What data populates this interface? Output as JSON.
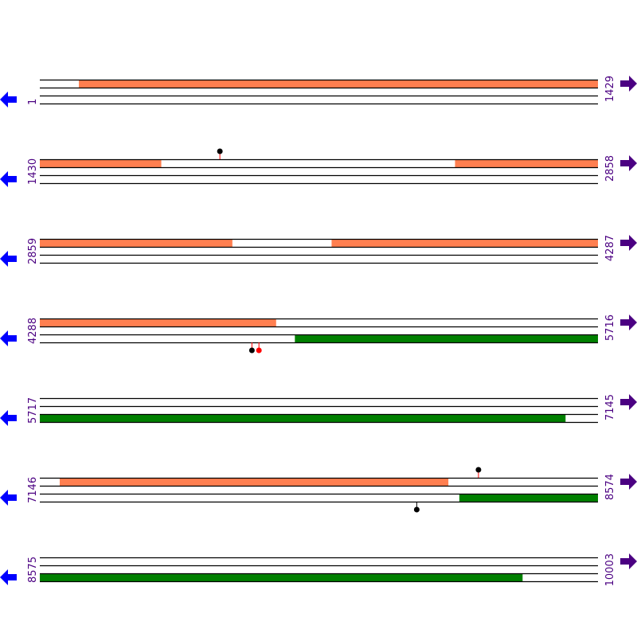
{
  "colors": {
    "forward": "#ff7f50",
    "reverse": "#008000",
    "line": "#000000",
    "label": "#4b0082",
    "left_arrow": "#0000ff",
    "right_arrow": "#4b0082",
    "marker_stem": "#ff0000",
    "marker_dot": "#000000"
  },
  "rows": [
    {
      "start": "1",
      "end": "1429",
      "s": 1,
      "e": 1429,
      "top": [
        [
          101,
          1429
        ]
      ],
      "bottom": [],
      "markers": []
    },
    {
      "start": "1430",
      "end": "2858",
      "s": 1430,
      "e": 2858,
      "top": [
        [
          1430,
          1740
        ],
        [
          2493,
          2858
        ]
      ],
      "bottom": [],
      "markers": [
        {
          "pos": 1891,
          "side": "above",
          "dot": "#000000",
          "stem": "#ff0000"
        }
      ]
    },
    {
      "start": "2859",
      "end": "4287",
      "s": 2859,
      "e": 4287,
      "top": [
        [
          2859,
          3351
        ],
        [
          3606,
          4287
        ]
      ],
      "bottom": [],
      "markers": []
    },
    {
      "start": "4288",
      "end": "5716",
      "s": 4288,
      "e": 5716,
      "top": [
        [
          4288,
          4892
        ]
      ],
      "bottom": [
        [
          4941,
          5716
        ]
      ],
      "markers": [
        {
          "pos": 4831,
          "side": "below",
          "dot": "#000000",
          "stem": "#ff0000"
        },
        {
          "pos": 4849,
          "side": "below",
          "dot": "#ff0000",
          "stem": "#ff0000"
        }
      ]
    },
    {
      "start": "5717",
      "end": "7145",
      "s": 5717,
      "e": 7145,
      "top": [],
      "bottom": [
        [
          5717,
          7062
        ]
      ],
      "markers": []
    },
    {
      "start": "7146",
      "end": "8574",
      "s": 7146,
      "e": 8574,
      "top": [
        [
          7197,
          8191
        ]
      ],
      "bottom": [
        [
          8220,
          8574
        ]
      ],
      "markers": [
        {
          "pos": 8269,
          "side": "above",
          "dot": "#000000",
          "stem": "#ff0000"
        },
        {
          "pos": 8111,
          "side": "below",
          "dot": "#000000",
          "stem": "#000000"
        }
      ]
    },
    {
      "start": "8575",
      "end": "10003",
      "s": 8575,
      "e": 10003,
      "top": [],
      "bottom": [
        [
          8575,
          9810
        ]
      ],
      "markers": []
    }
  ]
}
